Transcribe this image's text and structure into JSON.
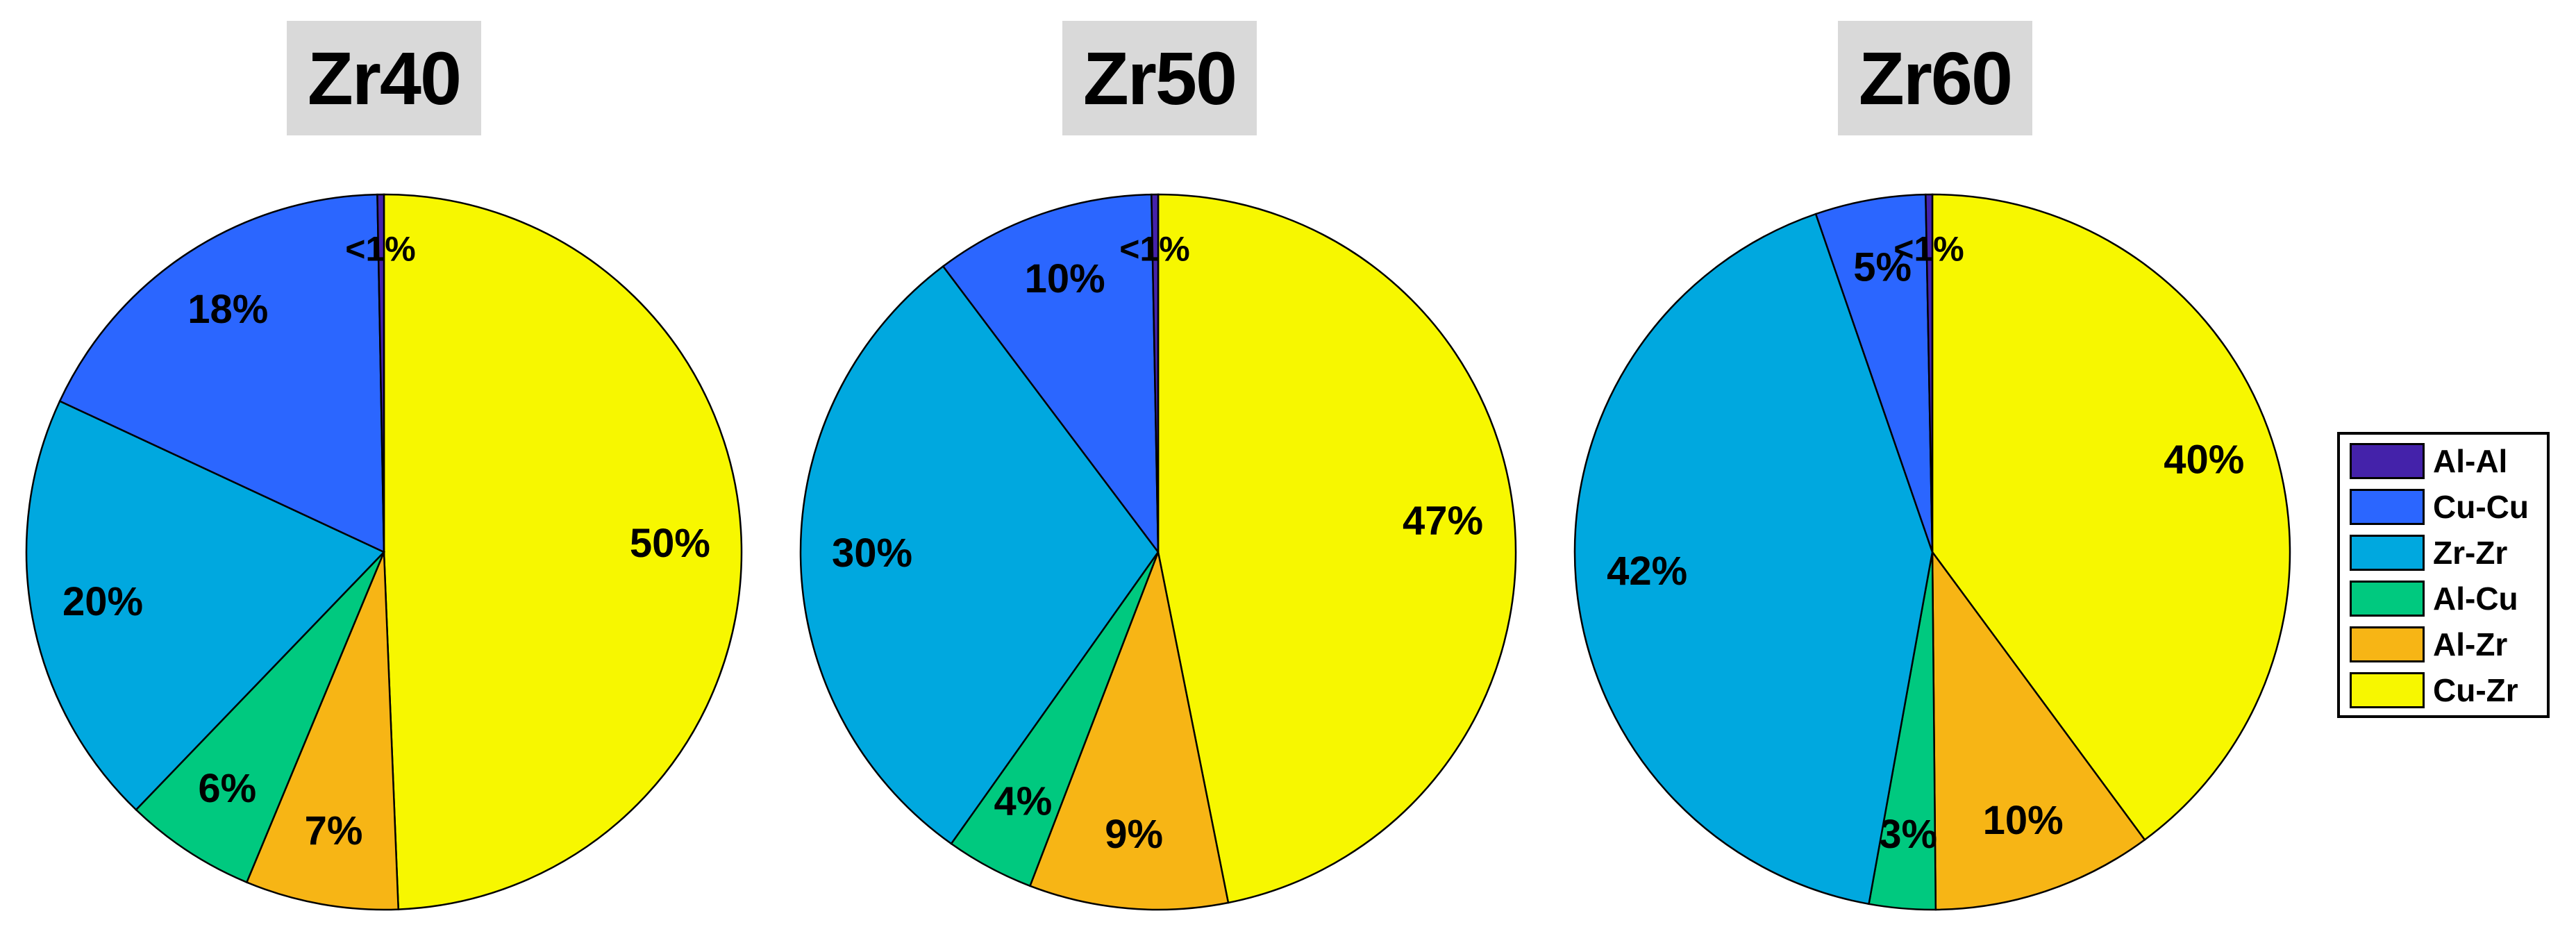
{
  "chart_data": [
    {
      "type": "pie",
      "title": "Zr40",
      "categories": [
        "Al-Al",
        "Cu-Cu",
        "Zr-Zr",
        "Al-Cu",
        "Al-Zr",
        "Cu-Zr"
      ],
      "values": [
        0.3,
        18,
        20,
        6,
        7,
        50
      ],
      "labels": [
        "<1%",
        "18%",
        "20%",
        "6%",
        "7%",
        "50%"
      ]
    },
    {
      "type": "pie",
      "title": "Zr50",
      "categories": [
        "Al-Al",
        "Cu-Cu",
        "Zr-Zr",
        "Al-Cu",
        "Al-Zr",
        "Cu-Zr"
      ],
      "values": [
        0.3,
        10,
        30,
        4,
        9,
        47
      ],
      "labels": [
        "<1%",
        "10%",
        "30%",
        "4%",
        "9%",
        "47%"
      ]
    },
    {
      "type": "pie",
      "title": "Zr60",
      "categories": [
        "Al-Al",
        "Cu-Cu",
        "Zr-Zr",
        "Al-Cu",
        "Al-Zr",
        "Cu-Zr"
      ],
      "values": [
        0.3,
        5,
        42,
        3,
        10,
        40
      ],
      "labels": [
        "<1%",
        "5%",
        "42%",
        "3%",
        "10%",
        "40%"
      ]
    }
  ],
  "legend": {
    "position": "right",
    "items": [
      {
        "label": "Al-Al",
        "color": "#4422aa"
      },
      {
        "label": "Cu-Cu",
        "color": "#2b66ff"
      },
      {
        "label": "Zr-Zr",
        "color": "#00a8df"
      },
      {
        "label": "Al-Cu",
        "color": "#00c97f"
      },
      {
        "label": "Al-Zr",
        "color": "#f7b515"
      },
      {
        "label": "Cu-Zr",
        "color": "#f7f700"
      }
    ]
  },
  "colors": [
    "#4422aa",
    "#2b66ff",
    "#00a8df",
    "#00c97f",
    "#f7b515",
    "#f7f700"
  ]
}
